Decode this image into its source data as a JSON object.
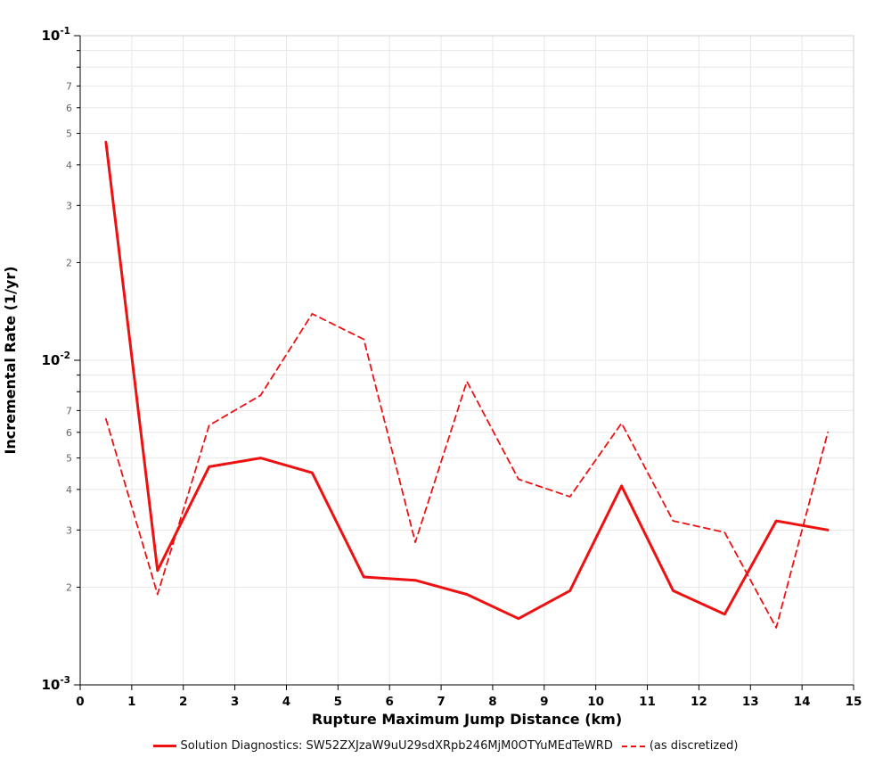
{
  "chart_data": {
    "type": "line",
    "title": "",
    "xlabel": "Rupture Maximum Jump Distance (km)",
    "ylabel": "Incremental Rate (1/yr)",
    "xlim": [
      0,
      15
    ],
    "ylim": [
      0.001,
      0.1
    ],
    "yscale": "log",
    "grid": true,
    "legend_position": "bottom",
    "x_ticks": [
      0,
      1,
      2,
      3,
      4,
      5,
      6,
      7,
      8,
      9,
      10,
      11,
      12,
      13,
      14,
      15
    ],
    "y_decade_exponents": [
      -1,
      -2,
      -3
    ],
    "y_minor_labels": [
      2,
      3,
      4,
      5,
      6,
      7
    ],
    "x": [
      0.5,
      1.5,
      2.5,
      3.5,
      4.5,
      5.5,
      6.5,
      7.5,
      8.5,
      9.5,
      10.5,
      11.5,
      12.5,
      13.5,
      14.5
    ],
    "series": [
      {
        "name": "Solution Diagnostics: SW52ZXJzaW9uU29sdXRpb246MjM0OTYuMEdTeWRD",
        "style": "solid",
        "color": "#ee1111",
        "width": 3,
        "values": [
          0.047,
          0.00225,
          0.0047,
          0.005,
          0.0045,
          0.00215,
          0.0021,
          0.0019,
          0.0016,
          0.00195,
          0.0041,
          0.00195,
          0.00165,
          0.0032,
          0.003
        ]
      },
      {
        "name": "(as discretized)",
        "style": "dashed",
        "color": "#ee1111",
        "width": 1.8,
        "values": [
          0.0066,
          0.0019,
          0.0063,
          0.0078,
          0.0139,
          0.0116,
          0.00275,
          0.0086,
          0.0043,
          0.0038,
          0.0064,
          0.0032,
          0.00295,
          0.0015,
          0.006
        ]
      }
    ],
    "colors": {
      "series_red": "#ee1111",
      "grid": "#e7e7e7",
      "axis": "#000000",
      "minor_tick_text": "#666666",
      "border": "#cfcfcf"
    }
  }
}
